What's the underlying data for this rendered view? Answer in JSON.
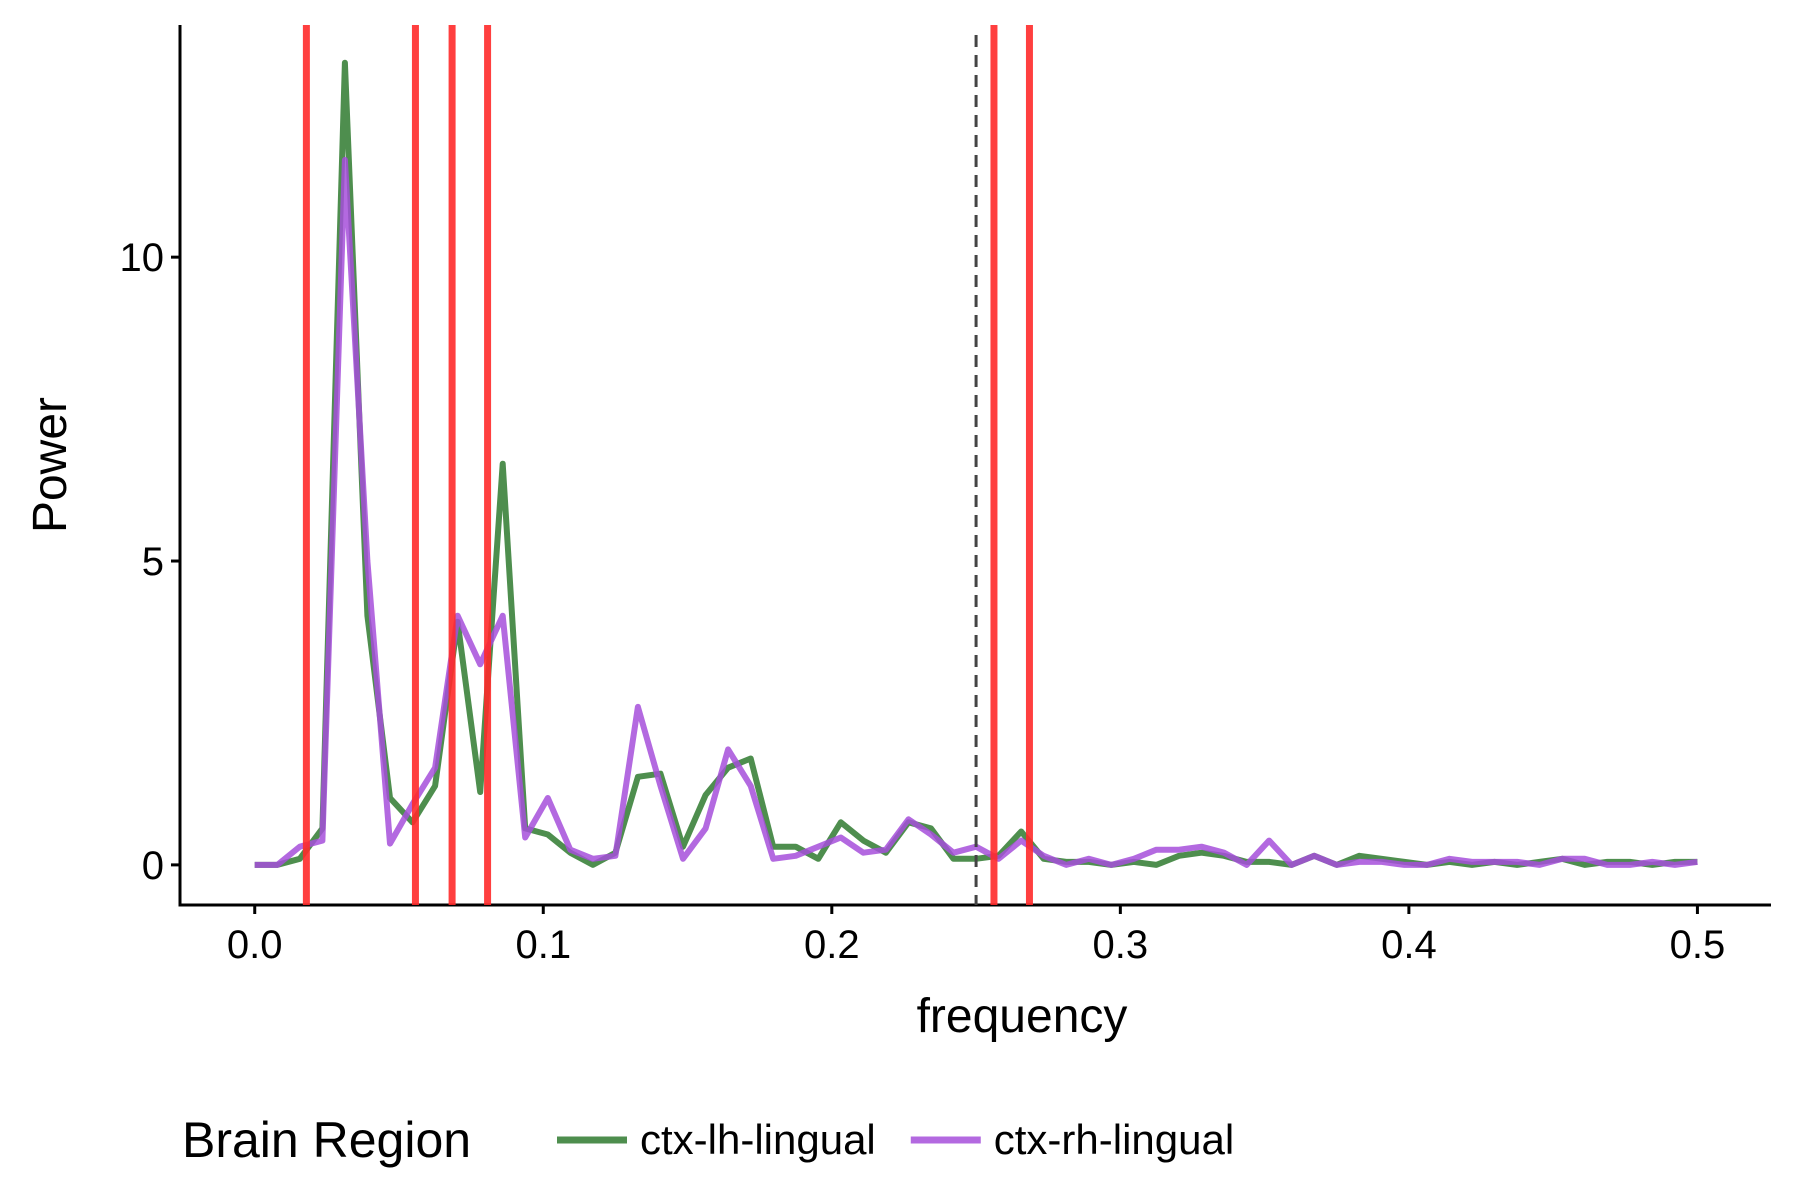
{
  "chart_data": {
    "type": "line",
    "x_label": "frequency",
    "y_label": "Power",
    "x": [
      0,
      0.0078125,
      0.015625,
      0.0234375,
      0.03125,
      0.0390625,
      0.046875,
      0.0546875,
      0.0625,
      0.0703125,
      0.078125,
      0.0859375,
      0.09375,
      0.1015625,
      0.109375,
      0.1171875,
      0.125,
      0.1328125,
      0.140625,
      0.1484375,
      0.15625,
      0.1640625,
      0.171875,
      0.1796875,
      0.1875,
      0.1953125,
      0.203125,
      0.2109375,
      0.21875,
      0.2265625,
      0.234375,
      0.2421875,
      0.25,
      0.2578125,
      0.265625,
      0.2734375,
      0.28125,
      0.2890625,
      0.296875,
      0.3046875,
      0.3125,
      0.3203125,
      0.328125,
      0.3359375,
      0.34375,
      0.3515625,
      0.359375,
      0.3671875,
      0.375,
      0.3828125,
      0.390625,
      0.3984375,
      0.40625,
      0.4140625,
      0.421875,
      0.4296875,
      0.4375,
      0.4453125,
      0.453125,
      0.4609375,
      0.46875,
      0.4765625,
      0.484375,
      0.4921875,
      0.5
    ],
    "series": [
      {
        "name": "ctx-lh-lingual",
        "color": "#2f7a2f",
        "values": [
          0,
          0,
          0.1,
          0.6,
          13.2,
          4.1,
          1.1,
          0.7,
          1.3,
          4.0,
          1.2,
          6.6,
          0.6,
          0.5,
          0.2,
          0,
          0.2,
          1.45,
          1.5,
          0.3,
          1.15,
          1.6,
          1.75,
          0.3,
          0.3,
          0.1,
          0.7,
          0.4,
          0.2,
          0.7,
          0.6,
          0.1,
          0.1,
          0.15,
          0.55,
          0.1,
          0.05,
          0.05,
          0,
          0.05,
          0,
          0.15,
          0.2,
          0.15,
          0.05,
          0.05,
          0,
          0.15,
          0,
          0.15,
          0.1,
          0.05,
          0,
          0.05,
          0,
          0.05,
          0,
          0.05,
          0.1,
          0,
          0.05,
          0.05,
          0,
          0.05,
          0.05
        ]
      },
      {
        "name": "ctx-rh-lingual",
        "color": "#a64fdb",
        "values": [
          0,
          0,
          0.3,
          0.4,
          11.6,
          5,
          0.35,
          1.0,
          1.6,
          4.1,
          3.3,
          4.1,
          0.45,
          1.1,
          0.25,
          0.1,
          0.15,
          2.6,
          1.3,
          0.1,
          0.6,
          1.9,
          1.3,
          0.1,
          0.15,
          0.3,
          0.45,
          0.2,
          0.25,
          0.75,
          0.5,
          0.2,
          0.3,
          0.1,
          0.4,
          0.15,
          0,
          0.1,
          0,
          0.1,
          0.25,
          0.25,
          0.3,
          0.2,
          0,
          0.4,
          0,
          0.15,
          0,
          0.05,
          0.05,
          0,
          0,
          0.1,
          0.05,
          0.05,
          0.05,
          0,
          0.1,
          0.1,
          0,
          0,
          0.05,
          0,
          0.05
        ]
      }
    ],
    "vlines": {
      "color": "#ff2a2a",
      "values": [
        0.0179,
        0.0557,
        0.0684,
        0.0807,
        0.2562,
        0.2685
      ]
    },
    "threshold": {
      "value": 0.25,
      "color": "#444444",
      "dashed": true
    },
    "xlim": [
      -0.0259,
      0.5255
    ],
    "ylim": [
      -0.66,
      13.82
    ],
    "xticks": [
      {
        "value": 0,
        "label": "0.0"
      },
      0.1,
      0.2,
      0.3,
      0.4,
      0.5
    ],
    "yticks": [
      0,
      5,
      10
    ],
    "legend_title": "Brain Region",
    "legend_position": "bottom"
  }
}
